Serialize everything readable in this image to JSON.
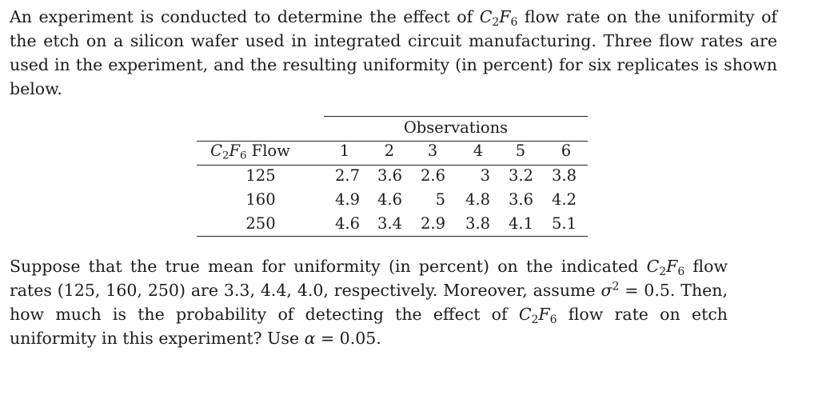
{
  "intro": {
    "text_1": "An experiment is conducted to determine the effect of ",
    "text_2": " flow rate on the uniformity of the etch on a silicon wafer used in integrated circuit manufacturing. Three flow rates are used in the experiment, and the resulting uniformity (in percent) for six replicates is shown below."
  },
  "gas": {
    "c": "C",
    "c_sub": "2",
    "f": "F",
    "f_sub": "6"
  },
  "table": {
    "observations_header": "Observations",
    "flow_header_suffix": " Flow",
    "columns": [
      "1",
      "2",
      "3",
      "4",
      "5",
      "6"
    ],
    "rows": [
      {
        "flow": "125",
        "values": [
          "2.7",
          "3.6",
          "2.6",
          "3",
          "3.2",
          "3.8"
        ]
      },
      {
        "flow": "160",
        "values": [
          "4.9",
          "4.6",
          "5",
          "4.8",
          "3.6",
          "4.2"
        ]
      },
      {
        "flow": "250",
        "values": [
          "4.6",
          "3.4",
          "2.9",
          "3.8",
          "4.1",
          "5.1"
        ]
      }
    ]
  },
  "question": {
    "text_1": "Suppose that the true mean for uniformity (in percent) on the indicated ",
    "text_2": " flow rates (125, 160, 250) are 3.3, 4.4, 4.0, respectively. Moreover, assume ",
    "sigma": "σ",
    "sigma_sup": "2",
    "sigma_value": " = 0.5. Then, how much is the probability of detecting the effect of ",
    "text_3": " flow rate on etch uniformity in this experiment? Use ",
    "alpha": "α",
    "alpha_value": " = 0.05."
  }
}
